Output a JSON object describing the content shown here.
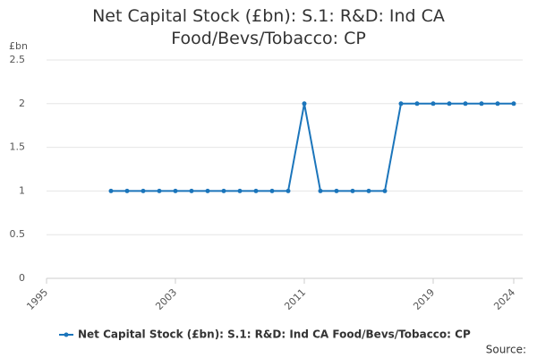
{
  "chart_data": {
    "type": "line",
    "title": "Net Capital Stock (£bn): S.1: R&D: Ind CA Food/Bevs/Tobacco: CP",
    "y_label": "£bn",
    "source": "Source:",
    "x": [
      1999,
      2000,
      2001,
      2002,
      2003,
      2004,
      2005,
      2006,
      2007,
      2008,
      2009,
      2010,
      2011,
      2012,
      2013,
      2014,
      2015,
      2016,
      2017,
      2018,
      2019,
      2020,
      2021,
      2022,
      2023,
      2024
    ],
    "series": [
      {
        "name": "Net Capital Stock (£bn): S.1: R&D: Ind CA Food/Bevs/Tobacco: CP",
        "color": "#1b75bb",
        "values": [
          1,
          1,
          1,
          1,
          1,
          1,
          1,
          1,
          1,
          1,
          1,
          1,
          2,
          1,
          1,
          1,
          1,
          1,
          2,
          2,
          2,
          2,
          2,
          2,
          2,
          2
        ]
      }
    ],
    "xlim": [
      1995,
      2024
    ],
    "xticks": [
      1995,
      2003,
      2011,
      2019,
      2024
    ],
    "ylim": [
      0,
      2.5
    ],
    "yticks": [
      0,
      0.5,
      1,
      1.5,
      2,
      2.5
    ],
    "grid": true
  }
}
